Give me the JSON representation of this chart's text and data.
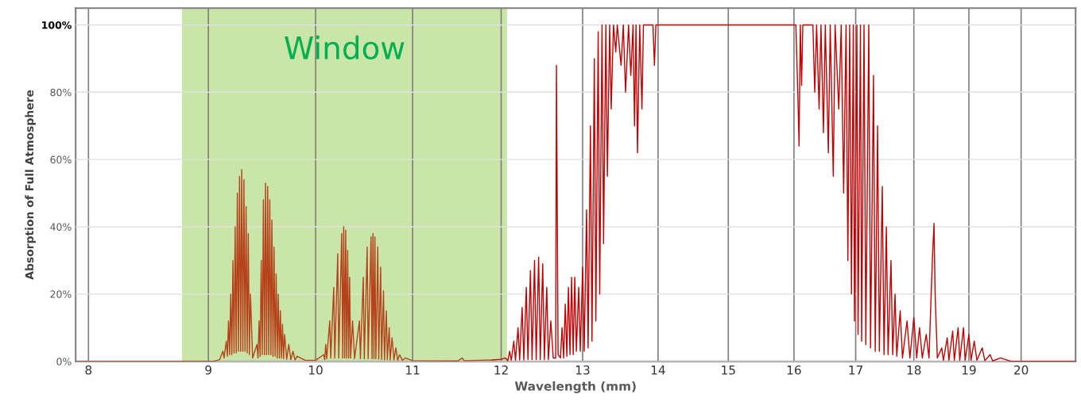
{
  "chart_data": {
    "type": "line",
    "xlabel": "Wavelength (mm)",
    "ylabel": "Absorption of Full Atmosphere",
    "log": "x",
    "xlim": [
      7.9,
      21.1
    ],
    "xticks": [
      8,
      9,
      10,
      11,
      12,
      13,
      14,
      15,
      16,
      17,
      18,
      19,
      20
    ],
    "ylim": [
      0,
      105
    ],
    "yticks": [
      {
        "value": 0,
        "label": "0%"
      },
      {
        "value": 20,
        "label": "20%"
      },
      {
        "value": 40,
        "label": "40%"
      },
      {
        "value": 60,
        "label": "60%"
      },
      {
        "value": 80,
        "label": "80%"
      },
      {
        "value": 100,
        "label": "100%"
      }
    ],
    "grid": true,
    "legend": false,
    "marker": "none",
    "line_style": "solid",
    "bands": [
      {
        "axis": "x",
        "from": 8.77,
        "to": 12.07,
        "label": "Window",
        "color": "#c9e6a8"
      }
    ],
    "series": [
      {
        "color": "#b5421b",
        "x": [
          7.9,
          8.7,
          9.05,
          9.1,
          9.13,
          9.14,
          9.16,
          9.17,
          9.18,
          9.19,
          9.2,
          9.21,
          9.22,
          9.23,
          9.24,
          9.25,
          9.26,
          9.27,
          9.28,
          9.29,
          9.3,
          9.31,
          9.32,
          9.33,
          9.34,
          9.35,
          9.36,
          9.37,
          9.38,
          9.4,
          9.44,
          9.45,
          9.46,
          9.47,
          9.48,
          9.49,
          9.5,
          9.51,
          9.52,
          9.53,
          9.54,
          9.55,
          9.56,
          9.57,
          9.58,
          9.59,
          9.6,
          9.61,
          9.62,
          9.63,
          9.64,
          9.65,
          9.66,
          9.67,
          9.68,
          9.69,
          9.7,
          9.72,
          9.74,
          9.76,
          9.78,
          9.8,
          9.82,
          9.9,
          10.0,
          10.08,
          10.09,
          10.1,
          10.11,
          10.14,
          10.15,
          10.18,
          10.19,
          10.22,
          10.23,
          10.26,
          10.27,
          10.28,
          10.29,
          10.3,
          10.31,
          10.32,
          10.33,
          10.34,
          10.35,
          10.37,
          10.39,
          10.44,
          10.45,
          10.48,
          10.49,
          10.52,
          10.53,
          10.56,
          10.57,
          10.58,
          10.59,
          10.6,
          10.61,
          10.63,
          10.64,
          10.66,
          10.67,
          10.69,
          10.7,
          10.72,
          10.73,
          10.75,
          10.76,
          10.78,
          10.8,
          10.82,
          10.84,
          10.86,
          10.89,
          10.92,
          11.0,
          11.5,
          11.55,
          11.57,
          11.9
        ],
        "values": [
          0,
          0,
          0,
          0.5,
          3,
          1,
          6,
          1.5,
          12,
          2,
          20,
          2,
          30,
          2.5,
          40,
          2.5,
          50,
          3,
          55,
          3,
          57,
          3,
          54,
          3,
          46,
          2.5,
          38,
          2,
          20,
          1,
          5,
          1,
          12,
          1.5,
          30,
          2,
          48,
          2,
          53,
          2,
          52,
          2,
          48,
          2,
          42,
          1.5,
          34,
          1.5,
          26,
          1,
          20,
          1,
          15,
          1,
          11,
          0.8,
          8,
          0.6,
          5,
          0.5,
          3,
          0.4,
          1.5,
          0.3,
          0.3,
          2,
          0.5,
          5,
          0.8,
          12,
          1,
          22,
          1,
          32,
          1,
          38,
          1,
          40,
          1,
          39,
          1,
          33,
          1,
          25,
          1,
          12,
          0.8,
          12,
          0.8,
          25,
          0.8,
          34,
          0.8,
          37,
          0.8,
          38,
          0.8,
          37,
          0.8,
          34,
          0.7,
          28,
          0.6,
          21,
          0.5,
          15,
          0.5,
          10,
          0.4,
          7,
          0.4,
          4,
          0.3,
          2,
          0.3,
          1,
          0.2,
          0.1,
          1,
          0.2,
          0.4
        ]
      },
      {
        "color": "#c00000",
        "x": [
          11.9,
          12.0,
          12.05,
          12.08,
          12.1,
          12.12,
          12.15,
          12.17,
          12.2,
          12.22,
          12.25,
          12.27,
          12.3,
          12.32,
          12.35,
          12.37,
          12.4,
          12.42,
          12.45,
          12.47,
          12.5,
          12.52,
          12.55,
          12.57,
          12.6,
          12.63,
          12.66,
          12.67,
          12.69,
          12.72,
          12.74,
          12.76,
          12.78,
          12.8,
          12.82,
          12.84,
          12.86,
          12.88,
          12.9,
          12.92,
          12.95,
          12.97,
          13.0,
          13.02,
          13.05,
          13.07,
          13.1,
          13.12,
          13.15,
          13.17,
          13.2,
          13.22,
          13.25,
          13.27,
          13.3,
          13.32,
          13.35,
          13.37,
          13.4,
          13.43,
          13.45,
          13.5,
          13.53,
          13.56,
          13.6,
          13.63,
          13.66,
          13.68,
          13.7,
          13.72,
          13.75,
          13.78,
          13.8,
          13.93,
          13.95,
          13.97,
          16.03,
          16.06,
          16.08,
          16.1,
          16.12,
          16.14,
          16.3,
          16.33,
          16.36,
          16.4,
          16.43,
          16.47,
          16.5,
          16.55,
          16.58,
          16.63,
          16.66,
          16.72,
          16.76,
          16.8,
          16.84,
          16.87,
          16.9,
          16.93,
          16.96,
          16.98,
          17.02,
          17.04,
          17.08,
          17.1,
          17.14,
          17.17,
          17.22,
          17.25,
          17.3,
          17.33,
          17.37,
          17.4,
          17.45,
          17.48,
          17.52,
          17.55,
          17.6,
          17.63,
          17.67,
          17.7,
          17.76,
          17.8,
          17.88,
          17.93,
          18.0,
          18.05,
          18.1,
          18.15,
          18.22,
          18.27,
          18.33,
          18.36,
          18.38,
          18.42,
          18.5,
          18.53,
          18.6,
          18.63,
          18.7,
          18.73,
          18.8,
          18.83,
          18.9,
          18.93,
          19.0,
          19.04,
          19.1,
          19.15,
          19.25,
          19.3,
          19.4,
          19.45,
          19.6,
          19.8,
          21.1
        ],
        "values": [
          0.4,
          0.6,
          1,
          0.2,
          3,
          0.3,
          6,
          0.3,
          10,
          0.4,
          16,
          0.4,
          22,
          0.5,
          27,
          0.5,
          30,
          0.5,
          31,
          0.5,
          29,
          0.5,
          22,
          0.5,
          12,
          1,
          1,
          88,
          2,
          1,
          10,
          1,
          17,
          1.5,
          22,
          2,
          25,
          2,
          25,
          3,
          22,
          3,
          28,
          3,
          45,
          4,
          70,
          6,
          90,
          12,
          98,
          20,
          100,
          35,
          100,
          55,
          100,
          75,
          100,
          92,
          100,
          88,
          100,
          80,
          100,
          85,
          100,
          70,
          100,
          62,
          100,
          75,
          100,
          100,
          88,
          100,
          100,
          80,
          64,
          100,
          82,
          100,
          100,
          80,
          100,
          75,
          100,
          68,
          100,
          62,
          100,
          55,
          100,
          75,
          100,
          50,
          100,
          30,
          100,
          20,
          100,
          12,
          100,
          8,
          100,
          6,
          100,
          5,
          100,
          4,
          85,
          3,
          70,
          3,
          52,
          2,
          40,
          2,
          30,
          2,
          20,
          1.5,
          15,
          1,
          12,
          1,
          13,
          1,
          10,
          1,
          8,
          1,
          30,
          41,
          20,
          1,
          4,
          0.3,
          7,
          0.3,
          9,
          0.3,
          10,
          0.3,
          10,
          0.3,
          8,
          0.3,
          6,
          0.3,
          4,
          0.2,
          2,
          0.1,
          1,
          0,
          0
        ]
      }
    ]
  }
}
